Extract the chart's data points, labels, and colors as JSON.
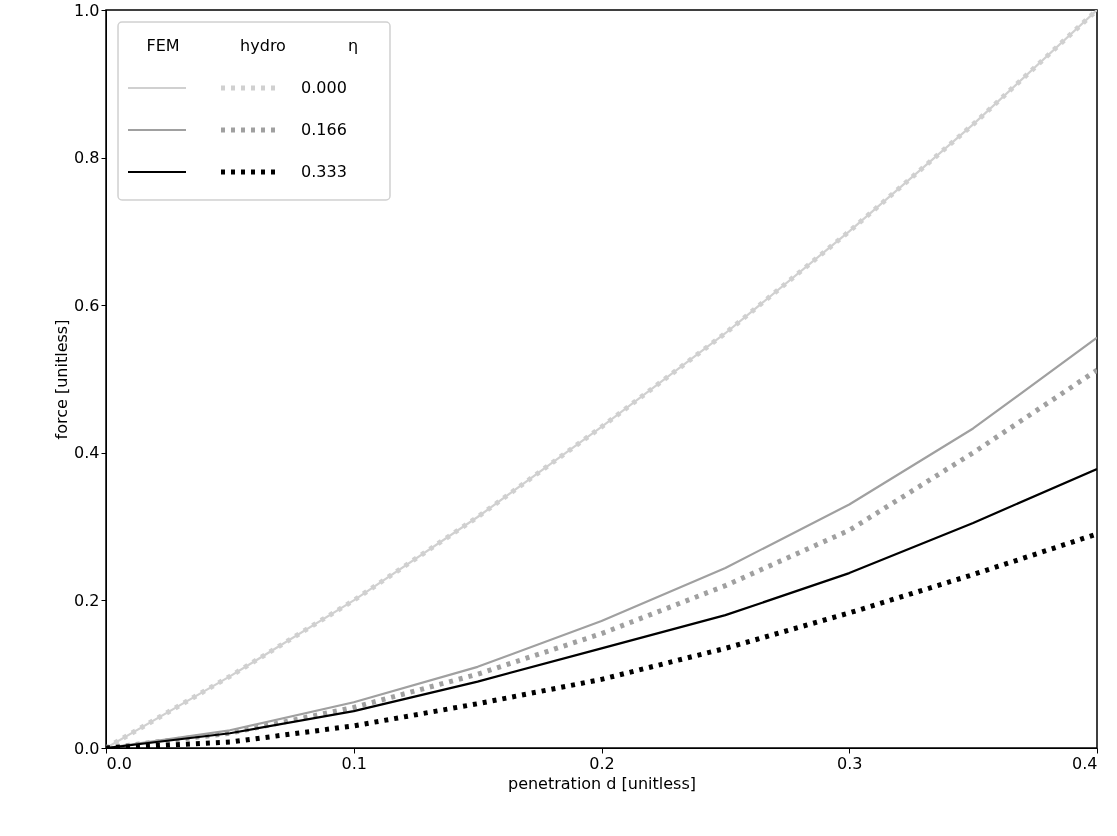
{
  "chart_data": {
    "type": "line",
    "xlabel": "penetration d [unitless]",
    "ylabel": "force [unitless]",
    "legend_title": "η",
    "annotations": [
      "FEM",
      "hydro"
    ],
    "x": [
      0,
      0.05,
      0.1,
      0.15,
      0.2,
      0.25,
      0.3,
      0.35,
      0.4
    ],
    "series": [
      {
        "color": "#d0d0d0",
        "line_style": "solid",
        "values": [
          0,
          0.097,
          0.2,
          0.313,
          0.435,
          0.562,
          0.7,
          0.845,
          1.0
        ]
      },
      {
        "name": "0.000",
        "color": "#d0d0d0",
        "line_style": "dotted",
        "values": [
          0,
          0.097,
          0.2,
          0.313,
          0.435,
          0.562,
          0.7,
          0.845,
          1.0
        ]
      },
      {
        "color": "#a0a0a0",
        "line_style": "solid",
        "values": [
          0,
          0.024,
          0.062,
          0.11,
          0.172,
          0.244,
          0.33,
          0.433,
          0.556
        ]
      },
      {
        "name": "0.166",
        "color": "#a0a0a0",
        "line_style": "dotted",
        "values": [
          0,
          0.02,
          0.055,
          0.1,
          0.155,
          0.22,
          0.295,
          0.4,
          0.512
        ]
      },
      {
        "color": "#000000",
        "line_style": "solid",
        "values": [
          0,
          0.02,
          0.05,
          0.09,
          0.135,
          0.18,
          0.237,
          0.305,
          0.378
        ]
      },
      {
        "name": "0.333",
        "color": "#000000",
        "line_style": "dotted",
        "values": [
          0,
          0.008,
          0.03,
          0.06,
          0.093,
          0.135,
          0.183,
          0.235,
          0.29
        ]
      }
    ],
    "xlim": [
      0,
      0.4
    ],
    "ylim": [
      0,
      1.0
    ],
    "xticks": [
      {
        "value": 0,
        "label": "0.0"
      },
      0.1,
      0.2,
      0.3,
      0.4
    ],
    "yticks": [
      {
        "value": 0,
        "label": "0.0"
      },
      0.2,
      0.4,
      0.6,
      0.8,
      {
        "value": 1,
        "label": "1.0"
      }
    ],
    "grid": false,
    "legend": "top left"
  }
}
